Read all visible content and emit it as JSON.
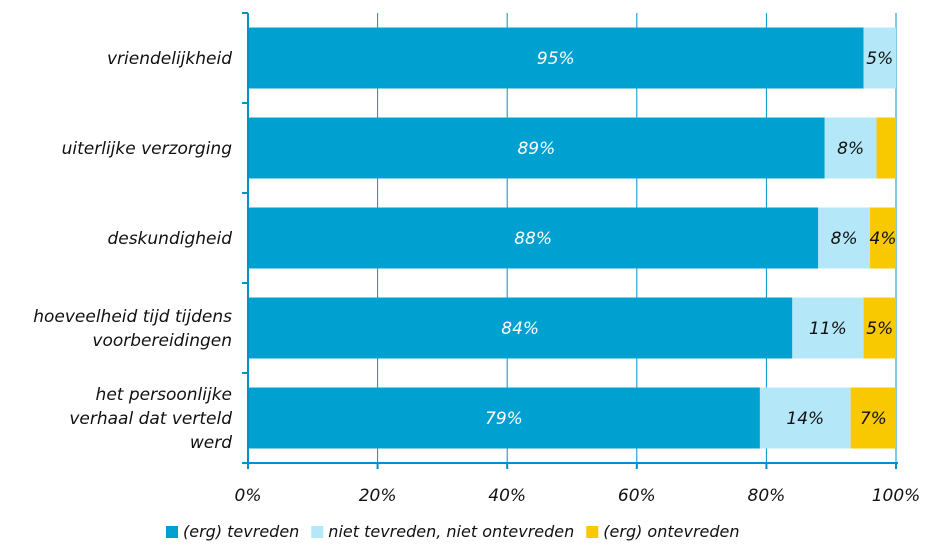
{
  "chart_data": {
    "type": "bar",
    "orientation": "horizontal",
    "stacked": true,
    "categories": [
      [
        "vriendelijkheid"
      ],
      [
        "uiterlijke verzorging"
      ],
      [
        "deskundigheid"
      ],
      [
        "hoeveelheid tijd tijdens",
        "voorbereidingen"
      ],
      [
        "het persoonlijke",
        "verhaal dat verteld",
        "werd"
      ]
    ],
    "series": [
      {
        "name": "(erg) tevreden",
        "color": "#00A0D0",
        "label_color": "#FFFFFF",
        "values": [
          95,
          89,
          88,
          84,
          79
        ],
        "labels": [
          "95%",
          "89%",
          "88%",
          "84%",
          "79%"
        ]
      },
      {
        "name": "niet tevreden, niet ontevreden",
        "color": "#B4E8F8",
        "label_color": "#111111",
        "values": [
          5,
          8,
          8,
          11,
          14
        ],
        "labels": [
          "5%",
          "8%",
          "8%",
          "11%",
          "14%"
        ]
      },
      {
        "name": "(erg) ontevreden",
        "color": "#F8C800",
        "label_color": "#111111",
        "values": [
          0,
          3,
          4,
          5,
          7
        ],
        "labels": [
          "",
          "",
          "4%",
          "5%",
          "7%"
        ]
      }
    ],
    "xlim": [
      0,
      100
    ],
    "xticks": [
      0,
      20,
      40,
      60,
      80,
      100
    ],
    "xtick_labels": [
      "0%",
      "20%",
      "40%",
      "60%",
      "80%",
      "100%"
    ],
    "grid": "vertical",
    "legend_position": "bottom",
    "title": "",
    "xlabel": "",
    "ylabel": ""
  }
}
